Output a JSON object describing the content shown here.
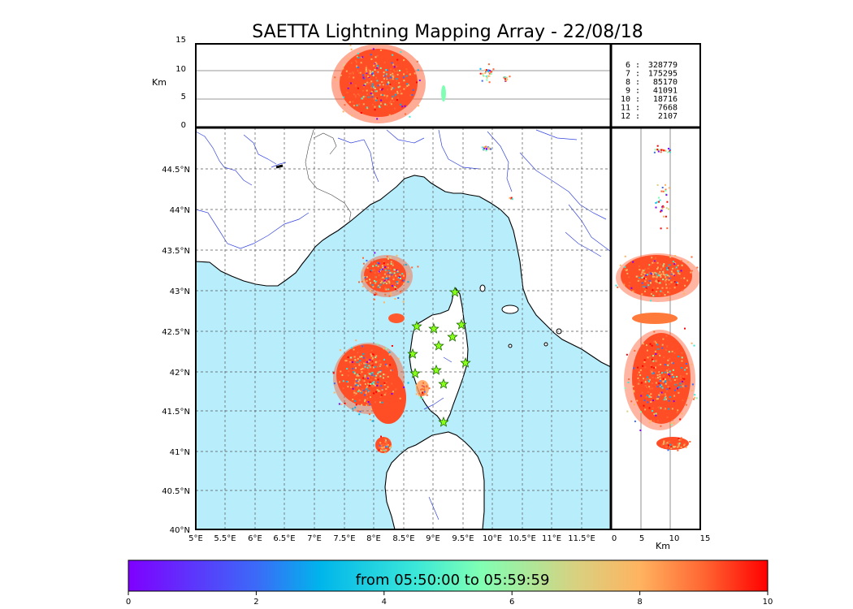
{
  "title": "SAETTA Lightning Mapping Array - 22/08/18",
  "top_panel": {
    "y_unit": "Km",
    "y_ticks": [
      "15",
      "10",
      "5",
      "0"
    ]
  },
  "map": {
    "lat_labels": [
      "44.5°N",
      "44°N",
      "43.5°N",
      "43°N",
      "42.5°N",
      "42°N",
      "41.5°N",
      "41°N",
      "40.5°N",
      "40°N"
    ],
    "lon_labels": [
      "5°E",
      "5.5°E",
      "6°E",
      "6.5°E",
      "7°E",
      "7.5°E",
      "8°E",
      "8.5°E",
      "9°E",
      "9.5°E",
      "10°E",
      "10.5°E",
      "11°E",
      "11.5°E"
    ],
    "colors": {
      "sea": "#b8edfb",
      "land": "#ffffff",
      "rivers": "#3344dd",
      "coast": "#000000",
      "stations": "#8aff1a"
    }
  },
  "side_panel": {
    "x_unit": "Km",
    "x_ticks": [
      "0",
      "5",
      "10",
      "15"
    ]
  },
  "stations_legend": [
    {
      "id": "6",
      "sep": ":",
      "count": "328779",
      "color": "#000000"
    },
    {
      "id": "7",
      "sep": ":",
      "count": "175295",
      "color": "#ff0000"
    },
    {
      "id": "8",
      "sep": ":",
      "count": "85170",
      "color": "#000000"
    },
    {
      "id": "9",
      "sep": ":",
      "count": "41091",
      "color": "#000000"
    },
    {
      "id": "10",
      "sep": ":",
      "count": "18716",
      "color": "#000000"
    },
    {
      "id": "11",
      "sep": ":",
      "count": "7668",
      "color": "#000000"
    },
    {
      "id": "12",
      "sep": ":",
      "count": "2107",
      "color": "#000000"
    }
  ],
  "colorbar": {
    "label": "from 05:50:00 to 05:59:59",
    "ticks": [
      "0",
      "2",
      "4",
      "6",
      "8",
      "10"
    ],
    "colors": [
      "#7f00ff",
      "#00b5eb",
      "#80ffb4",
      "#ffb360",
      "#ff0000"
    ]
  }
}
